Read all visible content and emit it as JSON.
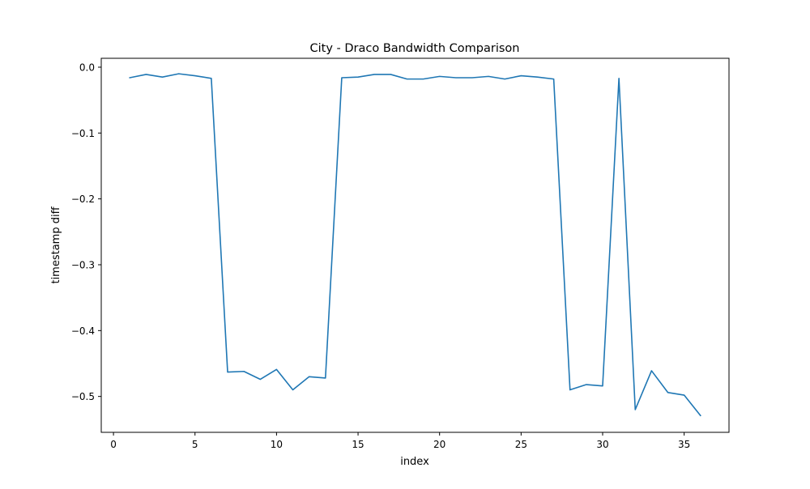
{
  "chart_data": {
    "type": "line",
    "title": "City - Draco Bandwidth Comparison",
    "xlabel": "index",
    "ylabel": "timestamp diff",
    "xlim": [
      -0.75,
      37.75
    ],
    "ylim": [
      -0.5545,
      0.0135
    ],
    "xticks": [
      0,
      5,
      10,
      15,
      20,
      25,
      30,
      35
    ],
    "yticks": [
      0.0,
      -0.1,
      -0.2,
      -0.3,
      -0.4,
      -0.5
    ],
    "ytick_labels": [
      "0.0",
      "−0.1",
      "−0.2",
      "−0.3",
      "−0.4",
      "−0.5"
    ],
    "grid": false,
    "line_color": "#1f77b4",
    "series": [
      {
        "x": [
          1,
          2,
          3,
          4,
          5,
          6,
          7,
          8,
          9,
          10,
          11,
          12,
          13,
          14,
          15,
          16,
          17,
          18,
          19,
          20,
          21,
          22,
          23,
          24,
          25,
          26,
          27,
          28,
          29,
          30,
          31,
          32,
          33,
          34,
          35,
          36
        ],
        "y": [
          -0.016,
          -0.011,
          -0.015,
          -0.01,
          -0.013,
          -0.017,
          -0.463,
          -0.462,
          -0.474,
          -0.459,
          -0.49,
          -0.47,
          -0.472,
          -0.016,
          -0.015,
          -0.011,
          -0.011,
          -0.018,
          -0.018,
          -0.014,
          -0.016,
          -0.016,
          -0.014,
          -0.018,
          -0.013,
          -0.015,
          -0.018,
          -0.49,
          -0.482,
          -0.484,
          -0.017,
          -0.52,
          -0.461,
          -0.494,
          -0.498,
          -0.529
        ]
      }
    ]
  }
}
